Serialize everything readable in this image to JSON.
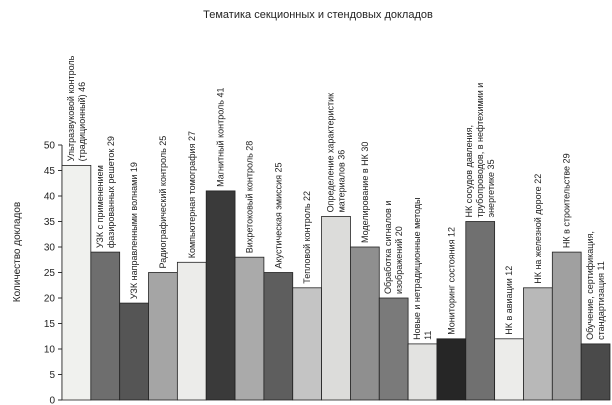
{
  "chart_data": {
    "type": "bar",
    "title": "Тематика секционных и стендовых докладов",
    "ylabel": "Количество докладов",
    "xlabel": "",
    "ylim": [
      0,
      50
    ],
    "yticks": [
      0,
      5,
      10,
      15,
      20,
      25,
      30,
      35,
      40,
      45,
      50
    ],
    "grid": false,
    "bars": [
      {
        "label": [
          "Ультразвуковой контроль",
          "(традиционный) 46"
        ],
        "value": 46,
        "color": "#f0f1ee"
      },
      {
        "label": [
          "УЗК с применением",
          "фазированных решеток 29"
        ],
        "value": 29,
        "color": "#6e6e6e"
      },
      {
        "label": [
          "УЗК направленными волнами 19"
        ],
        "value": 19,
        "color": "#555555"
      },
      {
        "label": [
          "Радиографический контроль 25"
        ],
        "value": 25,
        "color": "#a5a5a5"
      },
      {
        "label": [
          "Компьютерная томография 27"
        ],
        "value": 27,
        "color": "#ececea"
      },
      {
        "label": [
          "Магнитный контроль 41"
        ],
        "value": 41,
        "color": "#3a3a3a"
      },
      {
        "label": [
          "Вихретоковый контроль 28"
        ],
        "value": 28,
        "color": "#aaaaaa"
      },
      {
        "label": [
          "Акустическая эмиссия 25"
        ],
        "value": 25,
        "color": "#5e5e5e"
      },
      {
        "label": [
          "Тепловой контроль 22"
        ],
        "value": 22,
        "color": "#c4c4c4"
      },
      {
        "label": [
          "Определение характеристик",
          "материалов 36"
        ],
        "value": 36,
        "color": "#dcdcda"
      },
      {
        "label": [
          "Моделирование в НК 30"
        ],
        "value": 30,
        "color": "#8f8f8f"
      },
      {
        "label": [
          "Обработка сигналов и",
          "изображений 20"
        ],
        "value": 20,
        "color": "#7a7a7a"
      },
      {
        "label": [
          "Новые и нетрадиционные методы",
          "11"
        ],
        "value": 11,
        "color": "#e3e3e1"
      },
      {
        "label": [
          "Мониторинг состояния 12"
        ],
        "value": 12,
        "color": "#262626"
      },
      {
        "label": [
          "НК сосудов давления,",
          "трубопроводов, в нефтехимии и",
          "энергетике 35"
        ],
        "value": 35,
        "color": "#707070"
      },
      {
        "label": [
          "НК в авиации 12"
        ],
        "value": 12,
        "color": "#ececea"
      },
      {
        "label": [
          "НК на железной дороге 22"
        ],
        "value": 22,
        "color": "#b8b8b8"
      },
      {
        "label": [
          "НК в строительстве 29"
        ],
        "value": 29,
        "color": "#a0a0a0"
      },
      {
        "label": [
          "Обучение, сертификация,",
          "стандартизация 11"
        ],
        "value": 11,
        "color": "#4a4a4a"
      }
    ]
  }
}
